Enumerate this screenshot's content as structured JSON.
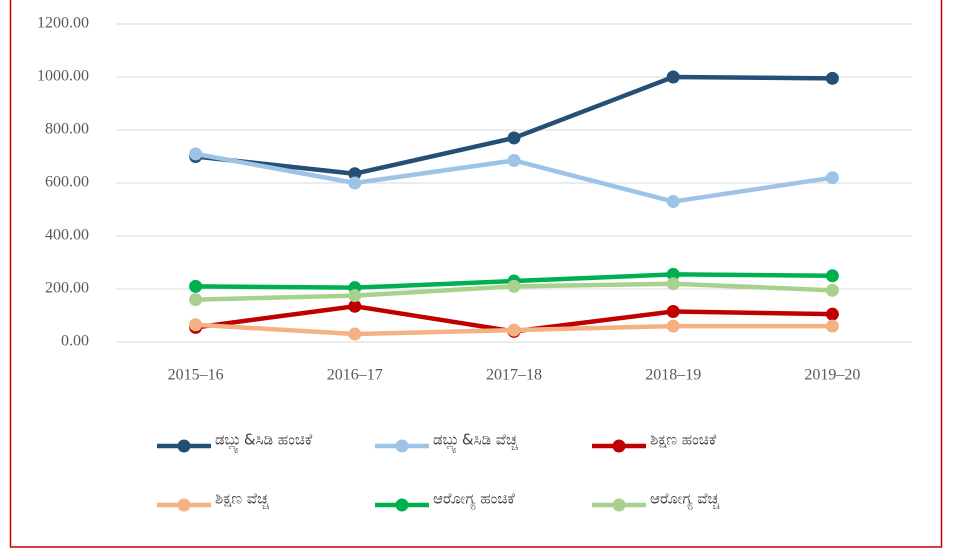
{
  "chart_data": {
    "type": "line",
    "categories": [
      "2015–16",
      "2016–17",
      "2017–18",
      "2018–19",
      "2019–20"
    ],
    "series": [
      {
        "name": "ಡಬ್ಲ್ಯು&ಸಿಡಿ ಹಂಚಿಕೆ",
        "color": "#264f78",
        "values": [
          700,
          635,
          770,
          1000,
          995
        ]
      },
      {
        "name": "ಡಬ್ಲ್ಯು&ಸಿಡಿ ವೆಚ್ಚ",
        "color": "#9dc3e6",
        "values": [
          710,
          600,
          685,
          530,
          620
        ]
      },
      {
        "name": "ಶಿಕ್ಷಣ ಹಂಚಿಕೆ",
        "color": "#c00000",
        "values": [
          55,
          135,
          40,
          115,
          105
        ]
      },
      {
        "name": "ಶಿಕ್ಷಣ ವೆಚ್ಚ",
        "color": "#f4b183",
        "values": [
          65,
          30,
          45,
          60,
          60
        ]
      },
      {
        "name": "ಆರೋಗ್ಯ ಹಂಚಿಕೆ",
        "color": "#00b050",
        "values": [
          210,
          205,
          230,
          255,
          250
        ]
      },
      {
        "name": "ಆರೋಗ್ಯ ವೆಚ್ಚ",
        "color": "#a9d18e",
        "values": [
          160,
          175,
          210,
          220,
          195
        ]
      }
    ],
    "ylim": [
      0,
      1200
    ],
    "yticks": [
      {
        "value": 0,
        "label": "0.00"
      },
      {
        "value": 200,
        "label": "200.00"
      },
      {
        "value": 400,
        "label": "400.00"
      },
      {
        "value": 600,
        "label": "600.00"
      },
      {
        "value": 800,
        "label": "800.00"
      },
      {
        "value": 1000,
        "label": "1000.00"
      },
      {
        "value": 1200,
        "label": "1200.00"
      }
    ],
    "grid": true,
    "legend": "bottom"
  }
}
